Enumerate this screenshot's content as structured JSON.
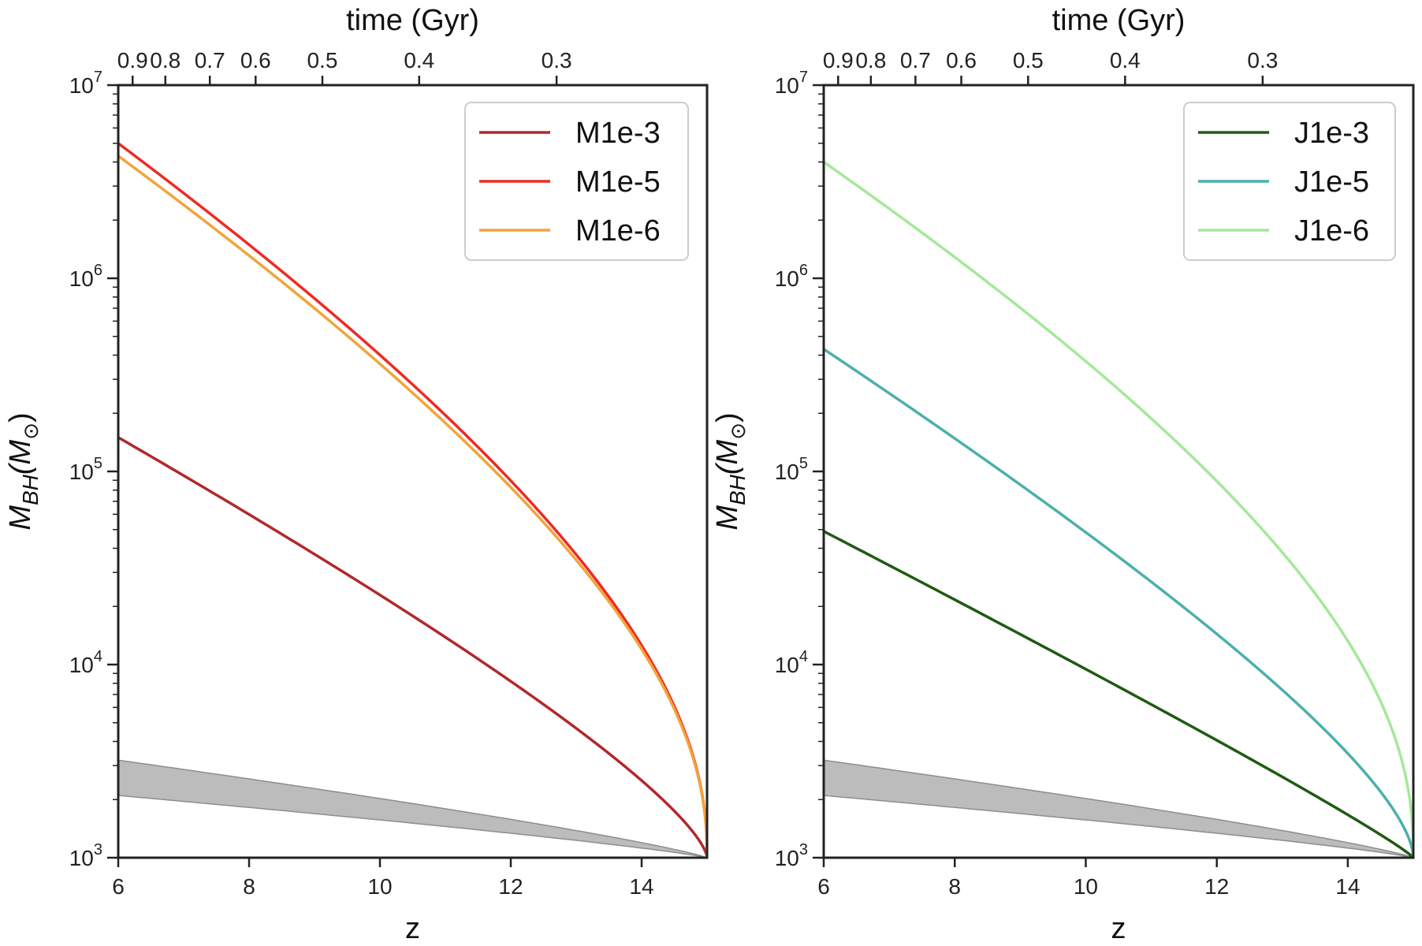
{
  "chart_data": [
    {
      "type": "line",
      "panel": "left",
      "xlabel": "z",
      "ylabel_main": "M",
      "ylabel_sub": "BH",
      "ylabel_paren_open": "(M",
      "ylabel_sun": "⊙",
      "ylabel_paren_close": ")",
      "top_xlabel": "time (Gyr)",
      "xlim": [
        6,
        15
      ],
      "ylim": [
        1000,
        10000000
      ],
      "yscale": "log",
      "xticks": [
        6,
        8,
        10,
        12,
        14
      ],
      "xtick_labels": [
        "6",
        "8",
        "10",
        "12",
        "14"
      ],
      "yticks": [
        1000,
        10000,
        100000,
        1000000,
        10000000
      ],
      "ytick_base": "10",
      "ytick_exponents": [
        "3",
        "4",
        "5",
        "6",
        "7"
      ],
      "top_ticks_time": [
        0.9,
        0.8,
        0.7,
        0.6,
        0.5,
        0.4,
        0.3
      ],
      "top_tick_labels": [
        "0.9",
        "0.8",
        "0.7",
        "0.6",
        "0.5",
        "0.4",
        "0.3"
      ],
      "legend_position": "upper-right",
      "legend_series": [
        "M1e-3",
        "M1e-5",
        "M1e-6"
      ],
      "series": [
        {
          "name": "M1e-3",
          "color": "#b2282c",
          "z_end": 15.0,
          "M_end": 1000,
          "M_6": 150000,
          "p": 0.62,
          "q": 0.5
        },
        {
          "name": "M1e-5",
          "color": "#ee2a24",
          "z_end": 15.0,
          "M_end": 1000,
          "M_6": 5000000,
          "p": 0.43,
          "q": 0.33
        },
        {
          "name": "M1e-6",
          "color": "#f2a43a",
          "z_end": 15.0,
          "M_end": 1000,
          "M_6": 4300000,
          "p": 0.43,
          "q": 0.33
        }
      ],
      "band": {
        "color": "#b0b0b0",
        "upper_at_6": 3200,
        "lower_at_6": 2100,
        "z_end": 15.0,
        "M_end": 1000
      }
    },
    {
      "type": "line",
      "panel": "right",
      "xlabel": "z",
      "ylabel_main": "M",
      "ylabel_sub": "BH",
      "ylabel_paren_open": "(M",
      "ylabel_sun": "⊙",
      "ylabel_paren_close": ")",
      "top_xlabel": "time (Gyr)",
      "xlim": [
        6,
        15
      ],
      "ylim": [
        1000,
        10000000
      ],
      "yscale": "log",
      "xticks": [
        6,
        8,
        10,
        12,
        14
      ],
      "xtick_labels": [
        "6",
        "8",
        "10",
        "12",
        "14"
      ],
      "yticks": [
        1000,
        10000,
        100000,
        1000000,
        10000000
      ],
      "ytick_base": "10",
      "ytick_exponents": [
        "3",
        "4",
        "5",
        "6",
        "7"
      ],
      "top_ticks_time": [
        0.9,
        0.8,
        0.7,
        0.6,
        0.5,
        0.4,
        0.3
      ],
      "top_tick_labels": [
        "0.9",
        "0.8",
        "0.7",
        "0.6",
        "0.5",
        "0.4",
        "0.3"
      ],
      "legend_position": "upper-right",
      "legend_series": [
        "J1e-3",
        "J1e-5",
        "J1e-6"
      ],
      "series": [
        {
          "name": "J1e-3",
          "color": "#1e5b12",
          "z_end": 15.0,
          "M_end": 1000,
          "M_6": 49000,
          "p": 0.75,
          "q": 0.75
        },
        {
          "name": "J1e-5",
          "color": "#4cb0ab",
          "z_end": 15.0,
          "M_end": 1000,
          "M_6": 430000,
          "p": 0.55,
          "q": 0.5
        },
        {
          "name": "J1e-6",
          "color": "#a5e89a",
          "z_end": 15.0,
          "M_end": 1000,
          "M_6": 4000000,
          "p": 0.42,
          "q": 0.3
        }
      ],
      "band": {
        "color": "#b0b0b0",
        "upper_at_6": 3200,
        "lower_at_6": 2100,
        "z_end": 15.0,
        "M_end": 1000
      }
    }
  ]
}
